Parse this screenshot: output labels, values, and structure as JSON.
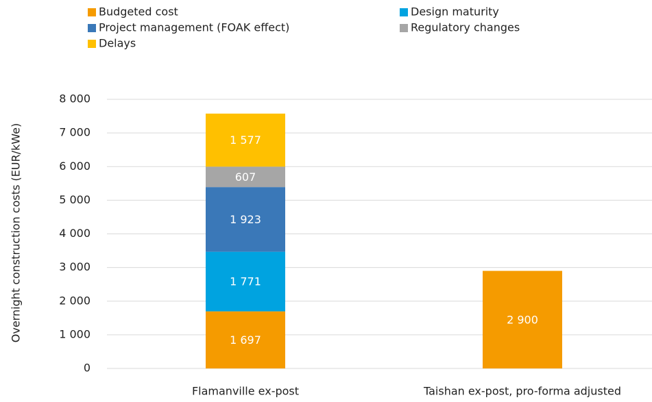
{
  "chart_data": {
    "type": "stacked_bar",
    "ylabel": "Overnight construction costs (EUR/kWe)",
    "categories": [
      "Flamanville ex-post",
      "Taishan ex-post, pro-forma adjusted"
    ],
    "series": [
      {
        "name": "Budgeted cost",
        "color": "#f59b00",
        "values": [
          1697,
          2900
        ],
        "value_labels": [
          "1 697",
          "2 900"
        ]
      },
      {
        "name": "Design maturity",
        "color": "#00a3e0",
        "values": [
          1771,
          null
        ],
        "value_labels": [
          "1 771",
          null
        ]
      },
      {
        "name": "Project management (FOAK effect)",
        "color": "#3a78b8",
        "values": [
          1923,
          null
        ],
        "value_labels": [
          "1 923",
          null
        ]
      },
      {
        "name": "Regulatory changes",
        "color": "#a6a6a6",
        "values": [
          607,
          null
        ],
        "value_labels": [
          "607",
          null
        ]
      },
      {
        "name": "Delays",
        "color": "#ffc000",
        "values": [
          1577,
          null
        ],
        "value_labels": [
          "1 577",
          null
        ]
      }
    ],
    "ylim": [
      0,
      8000
    ],
    "yticks": [
      0,
      {
        "value": 1000,
        "label": "1 000"
      },
      {
        "value": 2000,
        "label": "2 000"
      },
      {
        "value": 3000,
        "label": "3 000"
      },
      {
        "value": 4000,
        "label": "4 000"
      },
      {
        "value": 5000,
        "label": "5 000"
      },
      {
        "value": 6000,
        "label": "6 000"
      },
      {
        "value": 7000,
        "label": "7 000"
      },
      {
        "value": 8000,
        "label": "8 000"
      }
    ],
    "grid": true,
    "legend": "top"
  }
}
